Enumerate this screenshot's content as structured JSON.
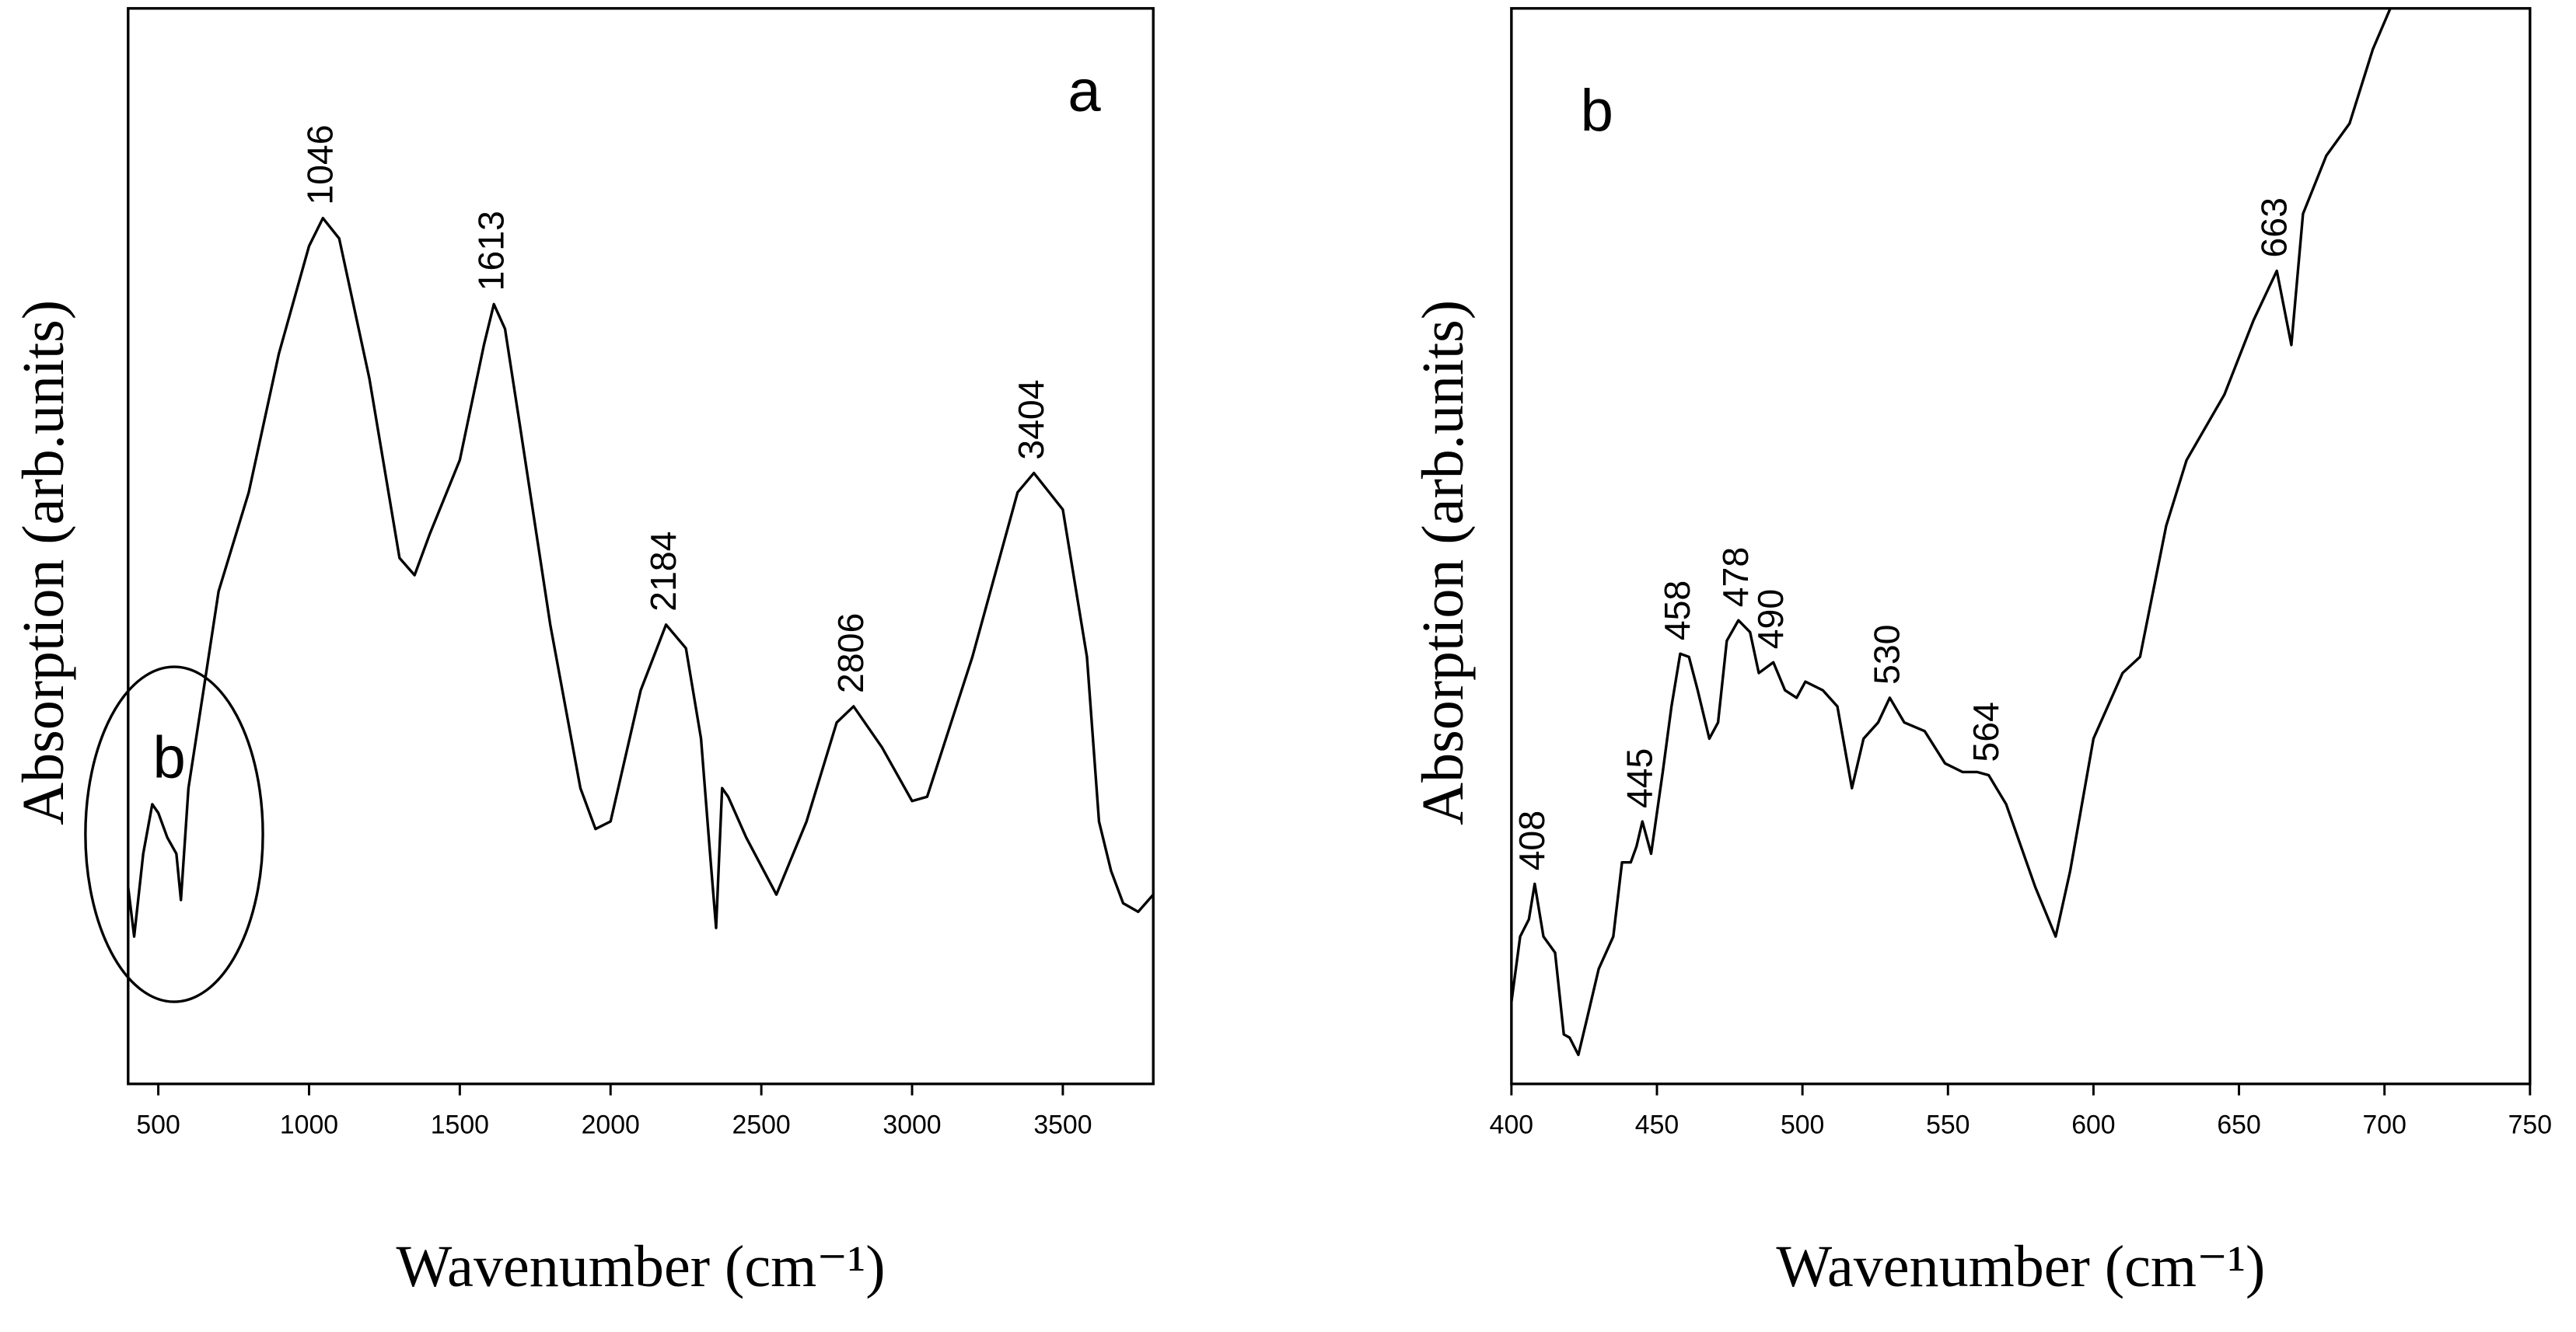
{
  "chart_data": [
    {
      "type": "line",
      "panel_label": "a",
      "inset_label": "b",
      "xlabel": "Wavenumber (cm⁻¹)",
      "ylabel": "Absorption (arb.units)",
      "xlim": [
        400,
        3800
      ],
      "ylim": [
        0,
        100
      ],
      "xticks": [
        500,
        1000,
        1500,
        2000,
        2500,
        3000,
        3500
      ],
      "color": "#000000",
      "x": [
        400,
        420,
        450,
        480,
        500,
        530,
        560,
        575,
        600,
        650,
        700,
        800,
        900,
        1000,
        1046,
        1100,
        1200,
        1300,
        1350,
        1400,
        1500,
        1580,
        1613,
        1650,
        1700,
        1800,
        1900,
        1950,
        2000,
        2100,
        2184,
        2250,
        2300,
        2330,
        2350,
        2370,
        2390,
        2450,
        2550,
        2650,
        2750,
        2806,
        2900,
        3000,
        3050,
        3200,
        3350,
        3404,
        3500,
        3580,
        3620,
        3660,
        3700,
        3750,
        3800
      ],
      "values": [
        18.3,
        13.7,
        21.4,
        26.0,
        25.2,
        22.9,
        21.4,
        17.1,
        27.5,
        36.6,
        45.8,
        55.0,
        67.9,
        77.9,
        80.5,
        78.6,
        65.6,
        48.9,
        47.3,
        51.1,
        58.0,
        68.7,
        72.5,
        70.2,
        61.1,
        42.7,
        27.5,
        23.7,
        24.4,
        36.6,
        42.7,
        40.5,
        32.1,
        21.4,
        14.5,
        27.5,
        26.7,
        22.9,
        17.6,
        24.4,
        33.6,
        35.1,
        31.3,
        26.3,
        26.7,
        39.7,
        55.0,
        56.8,
        53.4,
        39.7,
        24.4,
        19.8,
        16.8,
        16.0,
        17.6
      ],
      "annotations": [
        {
          "text": "1046",
          "x": 1046,
          "y": 80.5
        },
        {
          "text": "1613",
          "x": 1613,
          "y": 72.5
        },
        {
          "text": "2184",
          "x": 2184,
          "y": 42.7
        },
        {
          "text": "2806",
          "x": 2806,
          "y": 35.1
        },
        {
          "text": "3404",
          "x": 3404,
          "y": 56.8
        }
      ]
    },
    {
      "type": "line",
      "panel_label": "b",
      "xlabel": "Wavenumber (cm⁻¹)",
      "ylabel": "Absorption (arb.units)",
      "xlim": [
        400,
        750
      ],
      "ylim": [
        0,
        100
      ],
      "xticks": [
        400,
        450,
        500,
        550,
        600,
        650,
        700,
        750
      ],
      "color": "#000000",
      "x": [
        400,
        403,
        406,
        408,
        411,
        415,
        418,
        420,
        423,
        426,
        430,
        435,
        438,
        441,
        443,
        445,
        448,
        452,
        455,
        458,
        461,
        464,
        468,
        471,
        474,
        478,
        482,
        485,
        490,
        494,
        498,
        501,
        507,
        512,
        517,
        521,
        526,
        530,
        535,
        542,
        549,
        555,
        560,
        564,
        570,
        580,
        587,
        592,
        600,
        610,
        616,
        625,
        632,
        645,
        655,
        663,
        668,
        672,
        680,
        688,
        696,
        702
      ],
      "values": [
        7.6,
        13.7,
        15.3,
        18.6,
        13.7,
        12.2,
        4.6,
        4.3,
        2.7,
        6.1,
        10.7,
        13.7,
        20.6,
        20.6,
        22.1,
        24.4,
        21.4,
        29.0,
        35.1,
        40.0,
        39.7,
        36.6,
        32.1,
        33.6,
        41.2,
        43.1,
        42.0,
        38.2,
        39.2,
        36.6,
        35.9,
        37.4,
        36.6,
        35.1,
        27.5,
        32.1,
        33.6,
        35.9,
        33.6,
        32.8,
        29.8,
        29.0,
        29.0,
        28.7,
        26.0,
        18.3,
        13.7,
        19.8,
        32.1,
        38.2,
        39.7,
        51.9,
        58.0,
        64.1,
        71.0,
        75.6,
        68.7,
        80.9,
        86.3,
        89.3,
        96.2,
        100
      ],
      "annotations": [
        {
          "text": "408",
          "x": 408,
          "y": 18.6
        },
        {
          "text": "445",
          "x": 445,
          "y": 24.4
        },
        {
          "text": "458",
          "x": 458,
          "y": 40.0
        },
        {
          "text": "478",
          "x": 478,
          "y": 43.1
        },
        {
          "text": "490",
          "x": 490,
          "y": 39.2
        },
        {
          "text": "530",
          "x": 530,
          "y": 35.9
        },
        {
          "text": "564",
          "x": 564,
          "y": 28.7
        },
        {
          "text": "663",
          "x": 663,
          "y": 75.6
        }
      ]
    }
  ]
}
